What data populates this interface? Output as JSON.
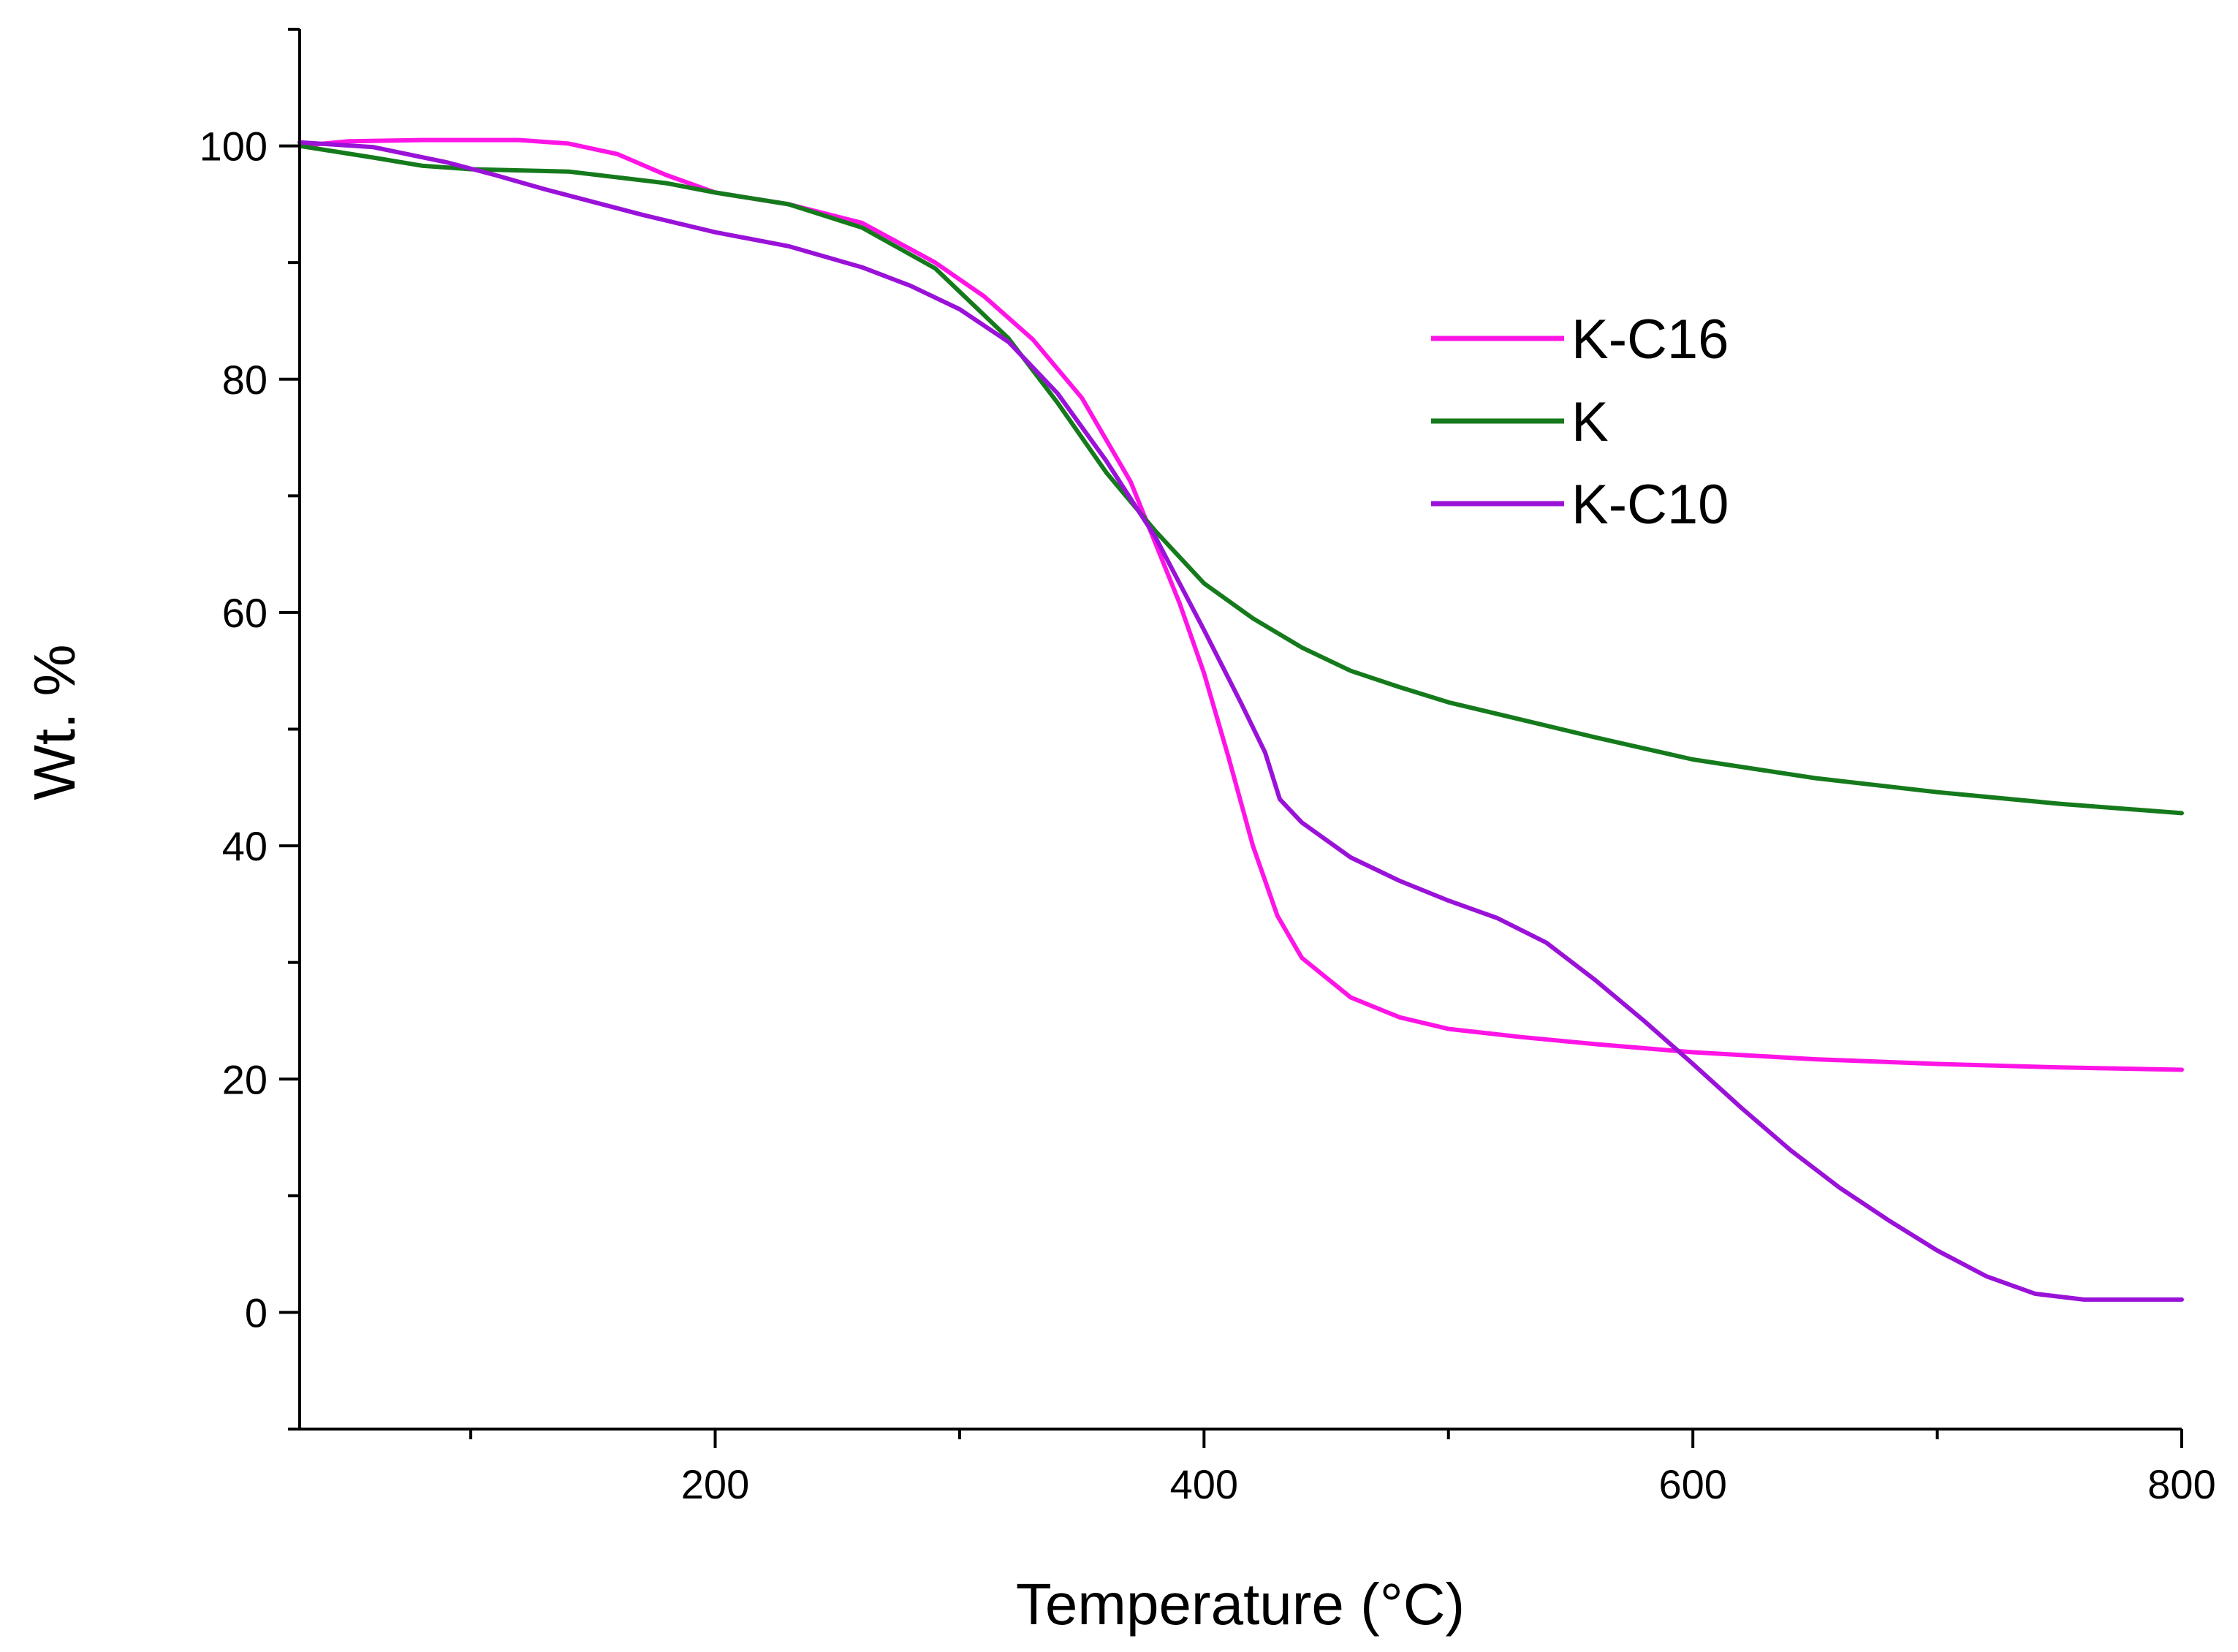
{
  "chart_data": {
    "type": "line",
    "title": "",
    "xlabel": "Temperature (°C)",
    "ylabel": "Wt. %",
    "xlim": [
      30,
      800
    ],
    "ylim": [
      -10,
      110
    ],
    "xticks": [
      200,
      400,
      600,
      800
    ],
    "yticks": [
      0,
      20,
      40,
      60,
      80,
      100
    ],
    "legend_position": "upper-right",
    "grid": false,
    "series": [
      {
        "name": "K-C16",
        "color": "#ff14e6",
        "points": [
          [
            30,
            100
          ],
          [
            50,
            100.4
          ],
          [
            80,
            100.5
          ],
          [
            120,
            100.5
          ],
          [
            140,
            100.2
          ],
          [
            160,
            99.3
          ],
          [
            180,
            97.5
          ],
          [
            200,
            96
          ],
          [
            230,
            95
          ],
          [
            260,
            93.4
          ],
          [
            290,
            90
          ],
          [
            310,
            87.1
          ],
          [
            330,
            83.4
          ],
          [
            350,
            78.4
          ],
          [
            370,
            71.2
          ],
          [
            390,
            60.8
          ],
          [
            400,
            54.8
          ],
          [
            410,
            47.6
          ],
          [
            420,
            40
          ],
          [
            430,
            34
          ],
          [
            440,
            30.4
          ],
          [
            460,
            27
          ],
          [
            480,
            25.3
          ],
          [
            500,
            24.3
          ],
          [
            530,
            23.6
          ],
          [
            560,
            23
          ],
          [
            600,
            22.3
          ],
          [
            650,
            21.7
          ],
          [
            700,
            21.3
          ],
          [
            750,
            21
          ],
          [
            800,
            20.8
          ]
        ]
      },
      {
        "name": "K",
        "color": "#157a1c",
        "points": [
          [
            30,
            100
          ],
          [
            60,
            99
          ],
          [
            80,
            98.3
          ],
          [
            100,
            98
          ],
          [
            140,
            97.8
          ],
          [
            180,
            96.8
          ],
          [
            200,
            96
          ],
          [
            230,
            95
          ],
          [
            260,
            93
          ],
          [
            290,
            89.5
          ],
          [
            320,
            83.5
          ],
          [
            340,
            78
          ],
          [
            360,
            72
          ],
          [
            380,
            67
          ],
          [
            400,
            62.5
          ],
          [
            420,
            59.5
          ],
          [
            440,
            57
          ],
          [
            460,
            55
          ],
          [
            480,
            53.6
          ],
          [
            500,
            52.3
          ],
          [
            530,
            50.8
          ],
          [
            560,
            49.3
          ],
          [
            600,
            47.4
          ],
          [
            650,
            45.8
          ],
          [
            700,
            44.6
          ],
          [
            750,
            43.6
          ],
          [
            800,
            42.8
          ]
        ]
      },
      {
        "name": "K-C10",
        "color": "#9a12d8",
        "points": [
          [
            30,
            100.3
          ],
          [
            60,
            99.9
          ],
          [
            90,
            98.6
          ],
          [
            110,
            97.5
          ],
          [
            130,
            96.3
          ],
          [
            150,
            95.2
          ],
          [
            170,
            94.1
          ],
          [
            200,
            92.6
          ],
          [
            230,
            91.4
          ],
          [
            260,
            89.6
          ],
          [
            280,
            88
          ],
          [
            300,
            86
          ],
          [
            320,
            83.2
          ],
          [
            340,
            78.8
          ],
          [
            360,
            73
          ],
          [
            380,
            66.5
          ],
          [
            400,
            58.5
          ],
          [
            415,
            52.3
          ],
          [
            425,
            48
          ],
          [
            431,
            44
          ],
          [
            440,
            42
          ],
          [
            460,
            39
          ],
          [
            480,
            37
          ],
          [
            500,
            35.3
          ],
          [
            520,
            33.8
          ],
          [
            540,
            31.7
          ],
          [
            560,
            28.5
          ],
          [
            580,
            25
          ],
          [
            600,
            21.3
          ],
          [
            620,
            17.5
          ],
          [
            640,
            13.9
          ],
          [
            660,
            10.7
          ],
          [
            680,
            7.9
          ],
          [
            700,
            5.3
          ],
          [
            720,
            3.1
          ],
          [
            740,
            1.6
          ],
          [
            760,
            1.1
          ],
          [
            800,
            1.1
          ]
        ]
      }
    ]
  }
}
